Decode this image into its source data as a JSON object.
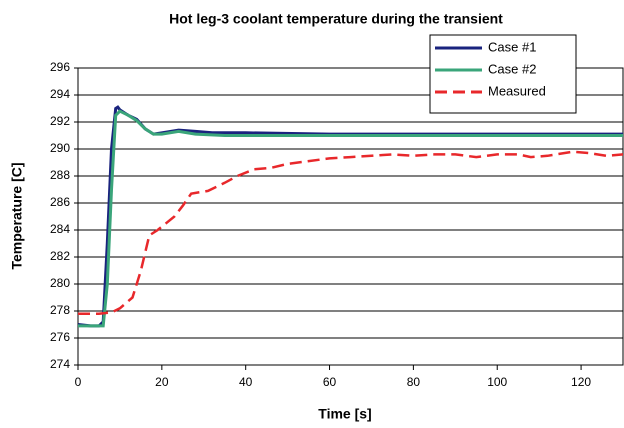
{
  "chart_data": {
    "type": "line",
    "title": "Hot leg-3 coolant temperature during the transient",
    "xlabel": "Time [s]",
    "ylabel": "Temperature [C]",
    "xlim": [
      0,
      130
    ],
    "xticks": [
      0,
      20,
      40,
      60,
      80,
      100,
      120
    ],
    "ylim": [
      274,
      296
    ],
    "yticks": [
      274,
      276,
      278,
      280,
      282,
      284,
      286,
      288,
      290,
      292,
      294,
      296
    ],
    "grid": true,
    "legend": "upper right",
    "series": [
      {
        "name": "Case #1",
        "color": "#1a237e",
        "dashed": false,
        "x": [
          0,
          3,
          5,
          6,
          7,
          8,
          9,
          9.5,
          10,
          12,
          14,
          16,
          18,
          20,
          24,
          28,
          32,
          40,
          60,
          80,
          100,
          130
        ],
        "values": [
          277,
          276.9,
          276.9,
          277.2,
          283,
          290,
          293,
          293.1,
          292.9,
          292.5,
          292.2,
          291.5,
          291.1,
          291.2,
          291.4,
          291.3,
          291.2,
          291.2,
          291.1,
          291.1,
          291.1,
          291.1
        ]
      },
      {
        "name": "Case #2",
        "color": "#3aa57a",
        "dashed": false,
        "x": [
          0,
          5,
          6,
          7,
          8,
          9,
          10,
          12,
          14,
          16,
          18,
          20,
          24,
          28,
          35,
          130
        ],
        "values": [
          276.9,
          276.9,
          276.9,
          280,
          287,
          292.5,
          292.8,
          292.5,
          292.1,
          291.5,
          291.1,
          291.1,
          291.3,
          291.1,
          291,
          291
        ]
      },
      {
        "name": "Measured",
        "color": "#e8282b",
        "dashed": true,
        "x": [
          0,
          5,
          8,
          10,
          13,
          15,
          17,
          19,
          21,
          23,
          25,
          27,
          31,
          35,
          38,
          42,
          46,
          50,
          55,
          60,
          65,
          70,
          75,
          80,
          85,
          90,
          95,
          100,
          105,
          108,
          112,
          118,
          122,
          126,
          130
        ],
        "values": [
          277.8,
          277.8,
          277.9,
          278.2,
          279,
          281,
          283.6,
          284,
          284.5,
          285,
          285.8,
          286.7,
          286.9,
          287.5,
          288,
          288.5,
          288.6,
          288.9,
          289.1,
          289.3,
          289.4,
          289.5,
          289.6,
          289.5,
          289.6,
          289.6,
          289.4,
          289.6,
          289.6,
          289.4,
          289.5,
          289.8,
          289.7,
          289.5,
          289.6
        ]
      }
    ]
  }
}
